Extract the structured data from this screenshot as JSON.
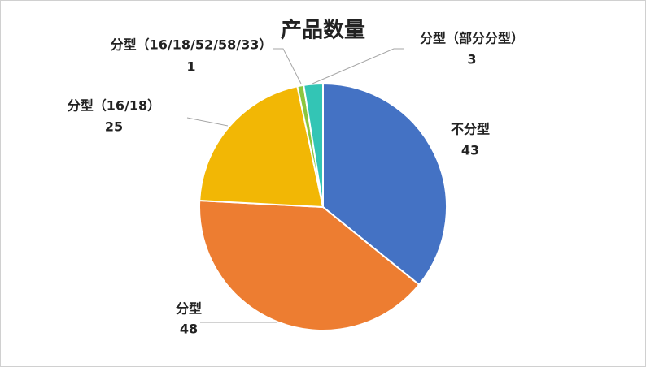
{
  "chart_data": {
    "type": "pie",
    "title": "产品数量",
    "categories": [
      "不分型",
      "分型",
      "分型（16/18）",
      "分型（16/18/52/58/33）",
      "分型（部分分型）"
    ],
    "values": [
      43,
      48,
      25,
      1,
      3
    ],
    "colors": [
      "#4472c4",
      "#ed7d31",
      "#f2b705",
      "#8cc63f",
      "#33c5b5"
    ]
  }
}
